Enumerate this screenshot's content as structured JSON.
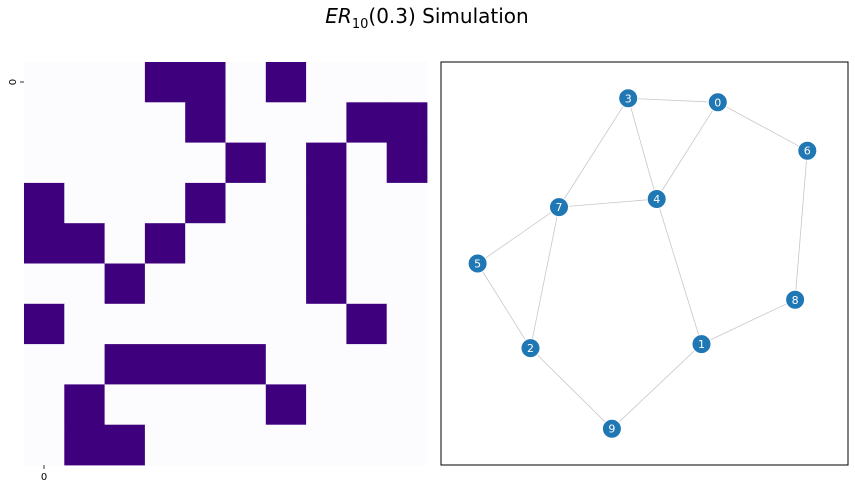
{
  "figure": {
    "title_main": "ER",
    "title_sub": "10",
    "title_rest": "(0.3) Simulation"
  },
  "chart_data": [
    {
      "type": "heatmap",
      "x_tick_labels": [
        "0"
      ],
      "y_tick_labels": [
        "0"
      ],
      "colors": {
        "off": "#fcfbfd",
        "on": "#3f007d"
      },
      "matrix": [
        [
          0,
          0,
          0,
          1,
          1,
          0,
          1,
          0,
          0,
          0
        ],
        [
          0,
          0,
          0,
          0,
          1,
          0,
          0,
          0,
          1,
          1
        ],
        [
          0,
          0,
          0,
          0,
          0,
          1,
          0,
          1,
          0,
          1
        ],
        [
          1,
          0,
          0,
          0,
          1,
          0,
          0,
          1,
          0,
          0
        ],
        [
          1,
          1,
          0,
          1,
          0,
          0,
          0,
          1,
          0,
          0
        ],
        [
          0,
          0,
          1,
          0,
          0,
          0,
          0,
          1,
          0,
          0
        ],
        [
          1,
          0,
          0,
          0,
          0,
          0,
          0,
          0,
          1,
          0
        ],
        [
          0,
          0,
          1,
          1,
          1,
          1,
          0,
          0,
          0,
          0
        ],
        [
          0,
          1,
          0,
          0,
          0,
          0,
          1,
          0,
          0,
          0
        ],
        [
          0,
          1,
          1,
          0,
          0,
          0,
          0,
          0,
          0,
          0
        ]
      ]
    },
    {
      "type": "network",
      "colors": {
        "node": "#1f77b4",
        "node_text": "#ffffff",
        "edge": "#c8c8c8",
        "frame": "#000000"
      },
      "nodes": [
        {
          "id": "0",
          "x": 0.68,
          "y": 0.9
        },
        {
          "id": "1",
          "x": 0.64,
          "y": 0.3
        },
        {
          "id": "2",
          "x": 0.22,
          "y": 0.29
        },
        {
          "id": "3",
          "x": 0.46,
          "y": 0.91
        },
        {
          "id": "4",
          "x": 0.53,
          "y": 0.66
        },
        {
          "id": "5",
          "x": 0.09,
          "y": 0.5
        },
        {
          "id": "6",
          "x": 0.9,
          "y": 0.78
        },
        {
          "id": "7",
          "x": 0.29,
          "y": 0.64
        },
        {
          "id": "8",
          "x": 0.87,
          "y": 0.41
        },
        {
          "id": "9",
          "x": 0.42,
          "y": 0.09
        }
      ],
      "edges": [
        [
          "3",
          "0"
        ],
        [
          "0",
          "6"
        ],
        [
          "0",
          "4"
        ],
        [
          "3",
          "4"
        ],
        [
          "3",
          "7"
        ],
        [
          "7",
          "4"
        ],
        [
          "7",
          "5"
        ],
        [
          "7",
          "2"
        ],
        [
          "5",
          "2"
        ],
        [
          "2",
          "9"
        ],
        [
          "9",
          "1"
        ],
        [
          "1",
          "8"
        ],
        [
          "8",
          "6"
        ],
        [
          "4",
          "1"
        ]
      ]
    }
  ]
}
